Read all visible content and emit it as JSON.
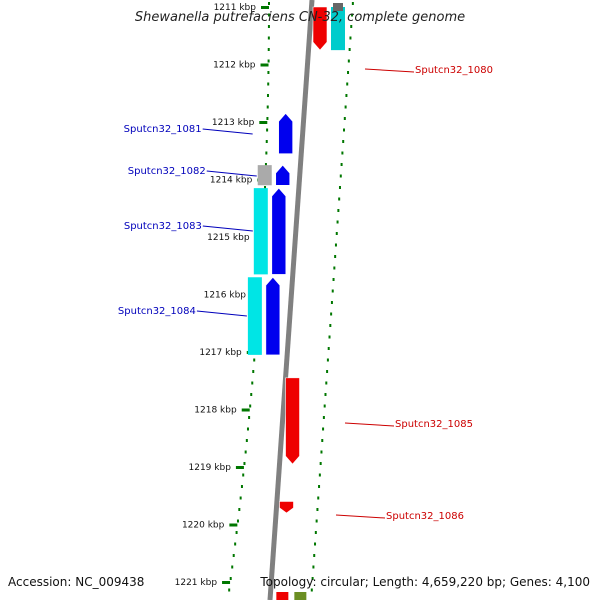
{
  "title": "Shewanella putrefaciens CN-32, complete genome",
  "footer": {
    "accession": "Accession: NC_009438",
    "summary": "Topology: circular; Length: 4,659,220 bp; Genes: 4,100"
  },
  "ruler": {
    "unit": "kbp",
    "ticks": [
      {
        "kbp": 1211,
        "label": "1211 kbp"
      },
      {
        "kbp": 1212,
        "label": "1212 kbp"
      },
      {
        "kbp": 1213,
        "label": "1213 kbp"
      },
      {
        "kbp": 1214,
        "label": "1214 kbp"
      },
      {
        "kbp": 1215,
        "label": "1215 kbp"
      },
      {
        "kbp": 1216,
        "label": "1216 kbp"
      },
      {
        "kbp": 1217,
        "label": "1217 kbp"
      },
      {
        "kbp": 1218,
        "label": "1218 kbp"
      },
      {
        "kbp": 1219,
        "label": "1219 kbp"
      },
      {
        "kbp": 1220,
        "label": "1220 kbp"
      },
      {
        "kbp": 1221,
        "label": "1221 kbp"
      }
    ]
  },
  "colors": {
    "forward_gene": "#ee0000",
    "reverse_gene": "#0000ee",
    "forward_cds": "#00cccc",
    "reverse_cds": "#00e5e5",
    "other_feature": "#aaaaaa",
    "backbone": "#808080",
    "ruler": "#007700",
    "forward_label": "#cc0000",
    "reverse_label": "#0000bb"
  },
  "genes": [
    {
      "label": "Sputcn32_1080",
      "strand": "forward",
      "start_kbp": 1211.0,
      "end_kbp": 1211.75,
      "has_cds": true
    },
    {
      "label": "Sputcn32_1081",
      "strand": "reverse",
      "start_kbp": 1212.85,
      "end_kbp": 1213.55
    },
    {
      "label": "Sputcn32_1082",
      "strand": "reverse",
      "start_kbp": 1213.75,
      "end_kbp": 1214.1,
      "has_other": true
    },
    {
      "label": "Sputcn32_1083",
      "strand": "reverse",
      "start_kbp": 1214.15,
      "end_kbp": 1215.65,
      "has_cds": true
    },
    {
      "label": "Sputcn32_1084",
      "strand": "reverse",
      "start_kbp": 1215.7,
      "end_kbp": 1217.05,
      "has_cds": true
    },
    {
      "label": "Sputcn32_1085",
      "strand": "forward",
      "start_kbp": 1217.45,
      "end_kbp": 1218.95
    },
    {
      "label": "Sputcn32_1086",
      "strand": "forward",
      "start_kbp": 1219.6,
      "end_kbp": 1219.8
    }
  ]
}
